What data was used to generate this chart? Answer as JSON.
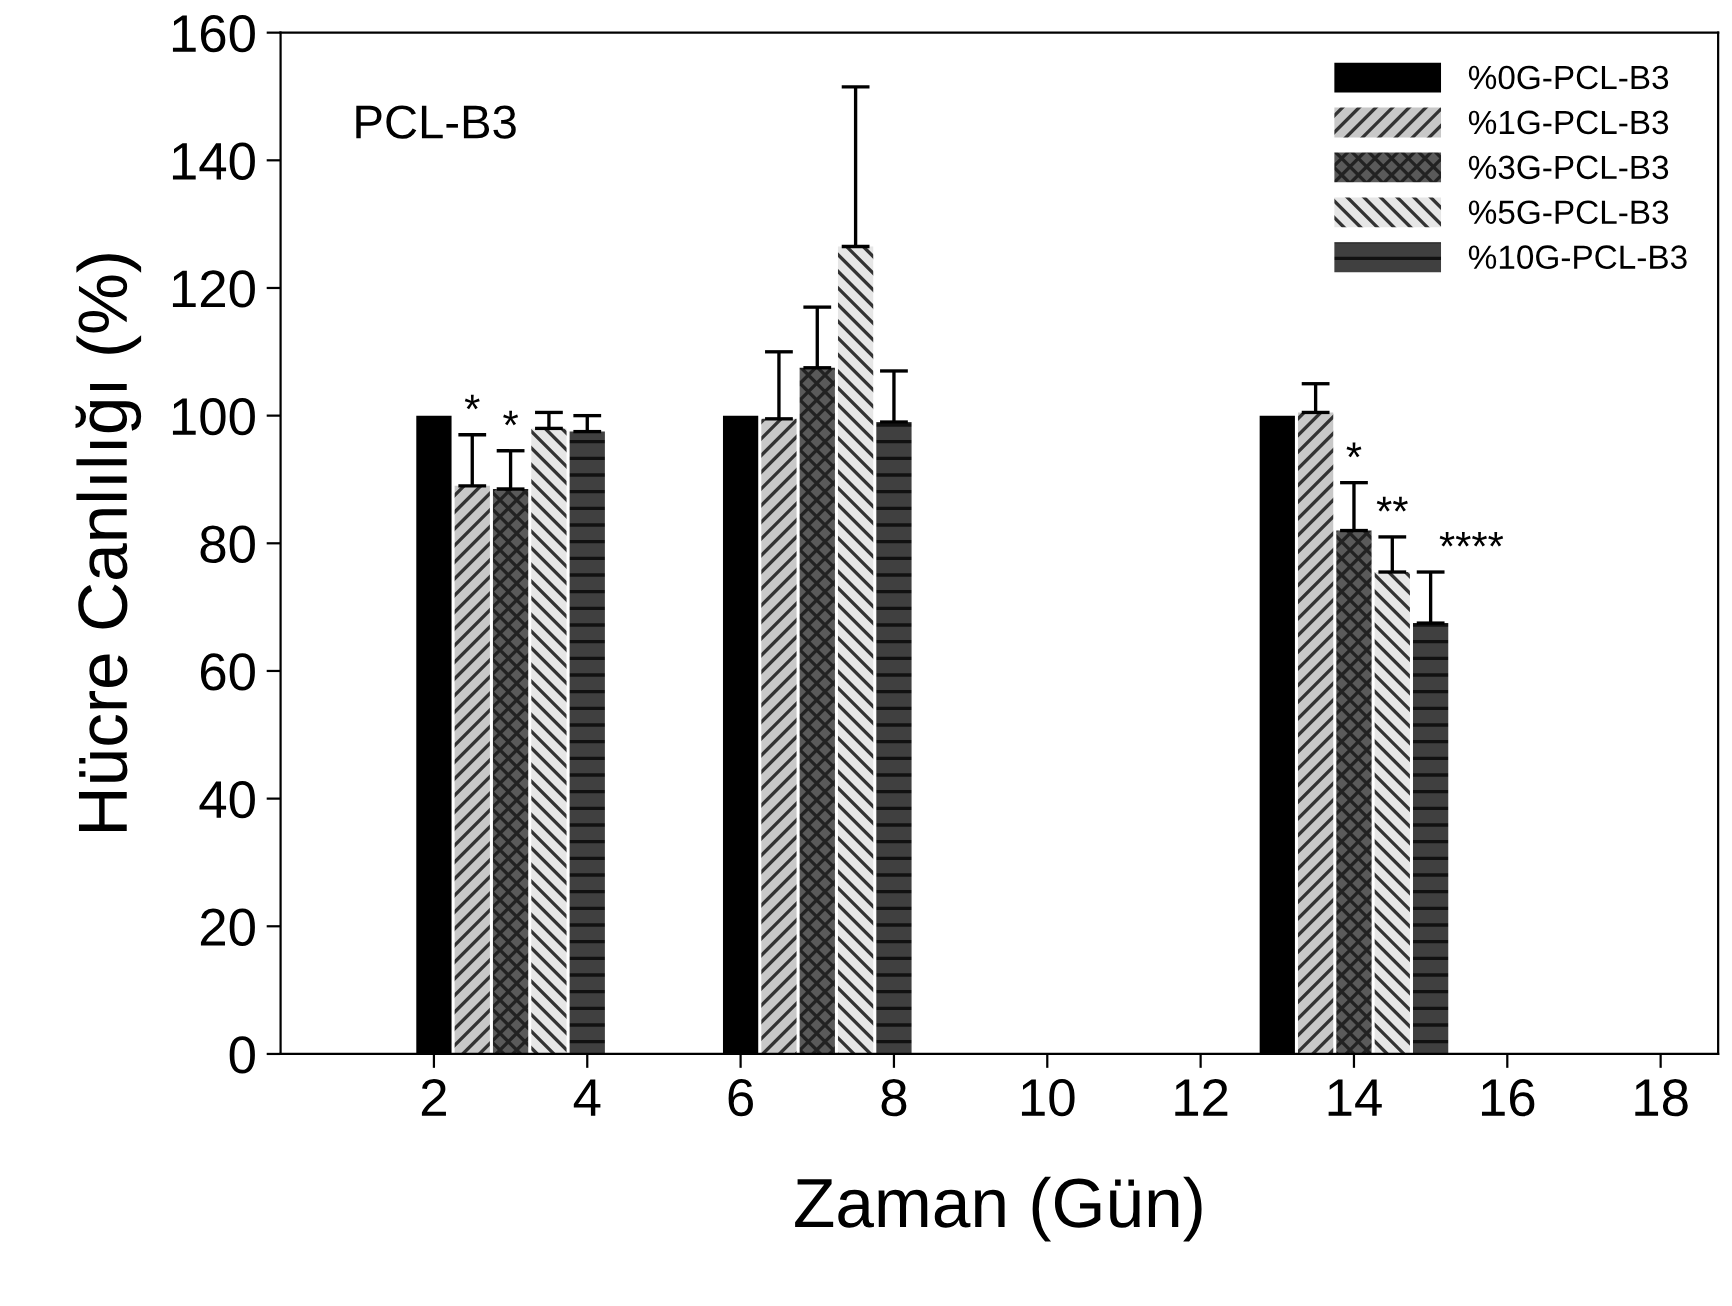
{
  "chart_data": {
    "type": "bar",
    "xlabel": "Zaman (Gün)",
    "ylabel": "Hücre Canlılığı (%)",
    "xlim": [
      0,
      18.75
    ],
    "xticks": [
      2,
      4,
      6,
      8,
      10,
      12,
      14,
      16,
      18
    ],
    "ylim": [
      0,
      160
    ],
    "yticks": [
      0,
      20,
      40,
      60,
      80,
      100,
      120,
      140,
      160
    ],
    "grid": false,
    "legend": "top right",
    "series": [
      {
        "name": "%0G-PCL-B3",
        "color": "#000000",
        "x": [
          2,
          6,
          13
        ],
        "values": [
          100,
          100,
          100
        ]
      },
      {
        "name": "%1G-PCL-B3",
        "color": "#c8c8c8",
        "x": [
          2.5,
          6.5,
          13.5
        ],
        "values": [
          89,
          99.5,
          100.5
        ],
        "errors": [
          [
            89,
            97
          ],
          [
            99.5,
            110
          ],
          [
            100.5,
            105
          ]
        ]
      },
      {
        "name": "%3G-PCL-B3",
        "color": "#5a5a5a",
        "x": [
          3,
          7,
          14
        ],
        "values": [
          88.5,
          107.5,
          82
        ],
        "errors": [
          [
            88.5,
            94.5
          ],
          [
            107.5,
            117
          ],
          [
            82,
            89.5
          ]
        ]
      },
      {
        "name": "%5G-PCL-B3",
        "color": "#e6e6e6",
        "x": [
          3.5,
          7.5,
          14.5
        ],
        "values": [
          98,
          126.5,
          75.5
        ],
        "errors": [
          [
            98,
            100.5
          ],
          [
            126.5,
            151.5
          ],
          [
            75.5,
            81
          ]
        ]
      },
      {
        "name": "%10G-PCL-B3",
        "color": "#404040",
        "x": [
          4,
          8,
          15
        ],
        "values": [
          97.5,
          99,
          67.5
        ],
        "errors": [
          [
            97.5,
            100
          ],
          [
            99,
            107
          ],
          [
            67.5,
            75.5
          ]
        ]
      }
    ],
    "annotations": [
      "PCL-B3",
      {
        "text": "*",
        "x": 2.5,
        "y": 97
      },
      {
        "text": "*",
        "x": 3,
        "y": 94.5
      },
      {
        "text": "*",
        "x": 14,
        "y": 89.5
      },
      {
        "text": "**",
        "x": 14.5,
        "y": 81
      },
      {
        "text": "****",
        "x": 15,
        "y": 75.5
      }
    ]
  }
}
